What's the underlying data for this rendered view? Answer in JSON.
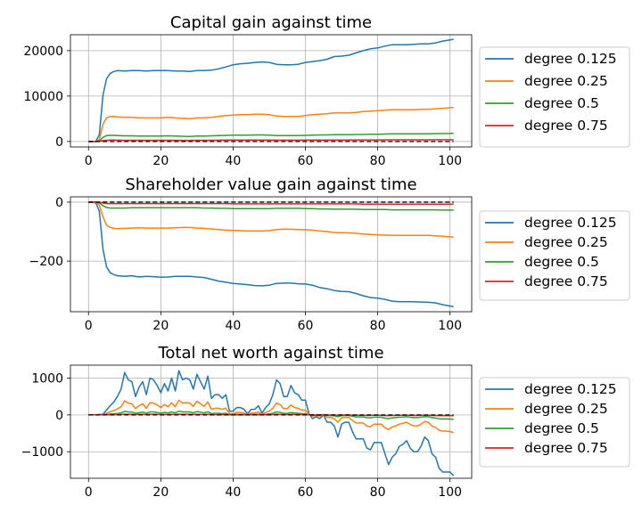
{
  "colors": {
    "series": [
      "#1f77b4",
      "#ff7f0e",
      "#2ca02c",
      "#d62728"
    ],
    "grid": "#b0b0b0",
    "baseline": "#000000"
  },
  "chart_data": [
    {
      "type": "line",
      "title": "Capital gain against time",
      "xlabel": "",
      "ylabel": "",
      "xlim": [
        -5,
        106
      ],
      "ylim": [
        -1200,
        23500
      ],
      "xticks": [
        0,
        20,
        40,
        60,
        80,
        100
      ],
      "yticks": [
        0,
        10000,
        20000
      ],
      "ytick_labels": [
        "0",
        "10000",
        "20000"
      ],
      "grid": true,
      "legend_position": "right",
      "baseline_dashed": 0,
      "x": [
        0,
        2,
        3,
        4,
        5,
        6,
        7,
        8,
        10,
        12,
        14,
        16,
        18,
        20,
        22,
        24,
        26,
        28,
        30,
        32,
        34,
        36,
        38,
        40,
        42,
        44,
        46,
        48,
        50,
        52,
        54,
        56,
        58,
        60,
        62,
        64,
        66,
        68,
        70,
        72,
        74,
        76,
        78,
        80,
        82,
        84,
        86,
        88,
        90,
        92,
        94,
        96,
        98,
        101
      ],
      "series": [
        {
          "name": "degree 0.125",
          "values": [
            0,
            0,
            1500,
            10200,
            13800,
            15000,
            15400,
            15600,
            15500,
            15600,
            15600,
            15500,
            15600,
            15600,
            15600,
            15500,
            15500,
            15400,
            15600,
            15600,
            15700,
            16000,
            16400,
            16900,
            17100,
            17200,
            17400,
            17500,
            17400,
            17000,
            16900,
            16900,
            17000,
            17400,
            17600,
            17800,
            18100,
            18700,
            18800,
            19000,
            19500,
            20000,
            20400,
            20600,
            21000,
            21300,
            21300,
            21300,
            21400,
            21500,
            21500,
            21700,
            22100,
            22500
          ]
        },
        {
          "name": "degree 0.25",
          "values": [
            0,
            0,
            400,
            3800,
            5200,
            5500,
            5500,
            5400,
            5300,
            5300,
            5200,
            5200,
            5200,
            5200,
            5300,
            5200,
            5100,
            5000,
            5200,
            5200,
            5300,
            5500,
            5700,
            5800,
            5900,
            5900,
            6000,
            6000,
            5900,
            5600,
            5500,
            5500,
            5500,
            5700,
            5900,
            6000,
            6100,
            6300,
            6300,
            6300,
            6400,
            6600,
            6700,
            6800,
            6900,
            7000,
            7000,
            7000,
            7000,
            7100,
            7100,
            7200,
            7300,
            7500
          ]
        },
        {
          "name": "degree 0.5",
          "values": [
            0,
            0,
            100,
            900,
            1300,
            1350,
            1350,
            1300,
            1250,
            1250,
            1200,
            1200,
            1200,
            1200,
            1250,
            1200,
            1150,
            1100,
            1200,
            1200,
            1250,
            1300,
            1350,
            1400,
            1400,
            1400,
            1450,
            1450,
            1400,
            1300,
            1300,
            1300,
            1300,
            1350,
            1400,
            1450,
            1450,
            1500,
            1500,
            1500,
            1550,
            1550,
            1600,
            1600,
            1650,
            1700,
            1700,
            1700,
            1700,
            1700,
            1700,
            1750,
            1750,
            1800
          ]
        },
        {
          "name": "degree 0.75",
          "values": [
            0,
            0,
            30,
            200,
            280,
            300,
            300,
            290,
            280,
            280,
            270,
            270,
            270,
            270,
            280,
            270,
            260,
            250,
            270,
            270,
            280,
            290,
            300,
            310,
            310,
            310,
            320,
            320,
            310,
            290,
            290,
            290,
            290,
            300,
            310,
            320,
            320,
            330,
            330,
            330,
            340,
            340,
            350,
            350,
            360,
            370,
            370,
            370,
            370,
            370,
            370,
            380,
            380,
            390
          ]
        }
      ]
    },
    {
      "type": "line",
      "title": "Shareholder value gain against time",
      "xlabel": "",
      "ylabel": "",
      "xlim": [
        -5,
        106
      ],
      "ylim": [
        -372,
        18
      ],
      "xticks": [
        0,
        20,
        40,
        60,
        80,
        100
      ],
      "yticks": [
        -200,
        0
      ],
      "ytick_labels": [
        "−200",
        "0"
      ],
      "grid": true,
      "legend_position": "right",
      "baseline_dashed": 0,
      "x": [
        0,
        2,
        3,
        4,
        5,
        6,
        7,
        8,
        10,
        12,
        14,
        16,
        18,
        20,
        22,
        24,
        26,
        28,
        30,
        32,
        34,
        36,
        38,
        40,
        42,
        44,
        46,
        48,
        50,
        52,
        54,
        56,
        58,
        60,
        62,
        64,
        66,
        68,
        70,
        72,
        74,
        76,
        78,
        80,
        82,
        84,
        86,
        88,
        90,
        92,
        94,
        96,
        98,
        101
      ],
      "series": [
        {
          "name": "degree 0.125",
          "values": [
            0,
            -2,
            -30,
            -160,
            -220,
            -240,
            -246,
            -250,
            -252,
            -250,
            -254,
            -252,
            -253,
            -255,
            -254,
            -252,
            -252,
            -252,
            -254,
            -256,
            -262,
            -268,
            -272,
            -276,
            -278,
            -280,
            -283,
            -284,
            -282,
            -276,
            -275,
            -275,
            -277,
            -278,
            -282,
            -290,
            -294,
            -300,
            -303,
            -304,
            -310,
            -318,
            -324,
            -326,
            -330,
            -336,
            -338,
            -338,
            -338,
            -339,
            -340,
            -342,
            -348,
            -355
          ]
        },
        {
          "name": "degree 0.25",
          "values": [
            0,
            -1,
            -10,
            -50,
            -78,
            -86,
            -89,
            -90,
            -89,
            -88,
            -87,
            -88,
            -88,
            -88,
            -88,
            -87,
            -86,
            -86,
            -88,
            -89,
            -91,
            -93,
            -95,
            -96,
            -97,
            -98,
            -98,
            -98,
            -97,
            -93,
            -92,
            -92,
            -93,
            -94,
            -95,
            -98,
            -100,
            -103,
            -104,
            -104,
            -106,
            -108,
            -110,
            -111,
            -112,
            -113,
            -113,
            -113,
            -113,
            -113,
            -113,
            -114,
            -116,
            -119
          ]
        },
        {
          "name": "degree 0.5",
          "values": [
            0,
            0,
            -3,
            -12,
            -18,
            -20,
            -20,
            -20,
            -20,
            -19,
            -19,
            -19,
            -19,
            -19,
            -19,
            -19,
            -19,
            -19,
            -19,
            -20,
            -20,
            -21,
            -21,
            -22,
            -22,
            -22,
            -22,
            -22,
            -22,
            -21,
            -21,
            -21,
            -21,
            -22,
            -22,
            -23,
            -23,
            -24,
            -24,
            -24,
            -24,
            -25,
            -25,
            -25,
            -25,
            -26,
            -26,
            -26,
            -26,
            -26,
            -26,
            -26,
            -27,
            -27
          ]
        },
        {
          "name": "degree 0.75",
          "values": [
            0,
            0,
            -1,
            -3,
            -5,
            -5,
            -5,
            -5,
            -5,
            -5,
            -5,
            -5,
            -5,
            -5,
            -5,
            -5,
            -5,
            -5,
            -5,
            -5,
            -5,
            -5,
            -5,
            -6,
            -6,
            -6,
            -6,
            -6,
            -6,
            -6,
            -6,
            -6,
            -6,
            -6,
            -6,
            -6,
            -6,
            -6,
            -6,
            -6,
            -6,
            -7,
            -7,
            -7,
            -7,
            -7,
            -7,
            -7,
            -7,
            -7,
            -7,
            -7,
            -7,
            -7
          ]
        }
      ]
    },
    {
      "type": "line",
      "title": "Total net worth against time",
      "xlabel": "",
      "ylabel": "",
      "xlim": [
        -5,
        106
      ],
      "ylim": [
        -1720,
        1350
      ],
      "xticks": [
        0,
        20,
        40,
        60,
        80,
        100
      ],
      "yticks": [
        -1000,
        0,
        1000
      ],
      "ytick_labels": [
        "−1000",
        "0",
        "1000"
      ],
      "grid": true,
      "legend_position": "right",
      "baseline_dashed": 0,
      "x": [
        0,
        2,
        4,
        6,
        7,
        8,
        9,
        10,
        11,
        12,
        13,
        14,
        15,
        16,
        17,
        18,
        19,
        20,
        21,
        22,
        23,
        24,
        25,
        26,
        27,
        28,
        29,
        30,
        31,
        32,
        33,
        34,
        35,
        36,
        37,
        38,
        39,
        40,
        41,
        42,
        43,
        44,
        45,
        46,
        47,
        48,
        49,
        50,
        51,
        52,
        53,
        54,
        55,
        56,
        57,
        58,
        59,
        60,
        61,
        62,
        63,
        64,
        65,
        66,
        67,
        68,
        69,
        70,
        71,
        72,
        73,
        74,
        75,
        76,
        77,
        78,
        79,
        80,
        81,
        82,
        83,
        84,
        85,
        86,
        87,
        88,
        89,
        90,
        91,
        92,
        93,
        94,
        95,
        96,
        97,
        98,
        99,
        100,
        101
      ],
      "series": [
        {
          "name": "degree 0.125",
          "values": [
            0,
            0,
            20,
            250,
            350,
            500,
            700,
            1150,
            950,
            900,
            500,
            750,
            900,
            550,
            1000,
            950,
            800,
            600,
            850,
            650,
            1000,
            650,
            1200,
            950,
            1000,
            950,
            700,
            1100,
            900,
            700,
            1050,
            450,
            550,
            550,
            450,
            550,
            100,
            100,
            200,
            200,
            150,
            30,
            150,
            150,
            250,
            50,
            200,
            300,
            550,
            950,
            850,
            500,
            500,
            800,
            600,
            550,
            400,
            400,
            30,
            -100,
            -50,
            -100,
            0,
            -200,
            -200,
            -300,
            -600,
            -250,
            -200,
            -200,
            -450,
            -650,
            -650,
            -650,
            -900,
            -950,
            -750,
            -750,
            -750,
            -1050,
            -1350,
            -1150,
            -1050,
            -850,
            -800,
            -700,
            -900,
            -1000,
            -1000,
            -850,
            -600,
            -700,
            -1050,
            -1150,
            -1450,
            -1550,
            -1550,
            -1550,
            -1650
          ]
        },
        {
          "name": "degree 0.25",
          "values": [
            0,
            0,
            10,
            80,
            120,
            160,
            220,
            380,
            320,
            300,
            170,
            250,
            300,
            180,
            330,
            320,
            270,
            200,
            280,
            220,
            330,
            220,
            400,
            320,
            330,
            320,
            230,
            370,
            300,
            230,
            350,
            150,
            180,
            180,
            150,
            180,
            30,
            30,
            70,
            70,
            50,
            10,
            50,
            50,
            80,
            20,
            70,
            100,
            180,
            320,
            280,
            170,
            170,
            270,
            200,
            180,
            130,
            130,
            10,
            -30,
            -20,
            -30,
            0,
            -70,
            -70,
            -100,
            -200,
            -80,
            -70,
            -70,
            -150,
            -220,
            -220,
            -220,
            -300,
            -320,
            -250,
            -250,
            -250,
            -350,
            -400,
            -330,
            -300,
            -250,
            -230,
            -200,
            -260,
            -300,
            -300,
            -250,
            -180,
            -200,
            -300,
            -340,
            -420,
            -440,
            -440,
            -450,
            -480
          ]
        },
        {
          "name": "degree 0.5",
          "values": [
            0,
            0,
            3,
            20,
            30,
            40,
            55,
            95,
            80,
            75,
            45,
            60,
            75,
            45,
            80,
            80,
            65,
            50,
            70,
            55,
            80,
            55,
            100,
            80,
            80,
            80,
            55,
            90,
            75,
            55,
            85,
            35,
            45,
            45,
            35,
            45,
            8,
            8,
            18,
            18,
            12,
            3,
            12,
            12,
            20,
            5,
            18,
            25,
            45,
            80,
            70,
            42,
            42,
            65,
            50,
            45,
            32,
            32,
            3,
            -8,
            -5,
            -8,
            0,
            -18,
            -18,
            -25,
            -50,
            -20,
            -18,
            -18,
            -38,
            -55,
            -55,
            -55,
            -75,
            -80,
            -62,
            -62,
            -62,
            -88,
            -100,
            -82,
            -75,
            -62,
            -58,
            -50,
            -65,
            -75,
            -75,
            -62,
            -45,
            -50,
            -75,
            -85,
            -105,
            -110,
            -110,
            -112,
            -120
          ]
        },
        {
          "name": "degree 0.75",
          "values": [
            0,
            0,
            1,
            5,
            7,
            9,
            12,
            20,
            17,
            16,
            9,
            13,
            16,
            9,
            17,
            17,
            14,
            11,
            15,
            12,
            17,
            12,
            21,
            17,
            17,
            17,
            12,
            19,
            16,
            12,
            18,
            7,
            9,
            9,
            7,
            9,
            2,
            2,
            4,
            4,
            3,
            1,
            3,
            3,
            4,
            1,
            4,
            5,
            9,
            17,
            15,
            9,
            9,
            14,
            11,
            9,
            7,
            7,
            1,
            -2,
            -1,
            -2,
            0,
            -4,
            -4,
            -5,
            -10,
            -4,
            -4,
            -4,
            -8,
            -11,
            -11,
            -11,
            -15,
            -16,
            -12,
            -12,
            -12,
            -18,
            -20,
            -16,
            -15,
            -12,
            -12,
            -10,
            -13,
            -15,
            -15,
            -12,
            -9,
            -10,
            -15,
            -17,
            -21,
            -22,
            -22,
            -22,
            -24
          ]
        }
      ]
    }
  ]
}
